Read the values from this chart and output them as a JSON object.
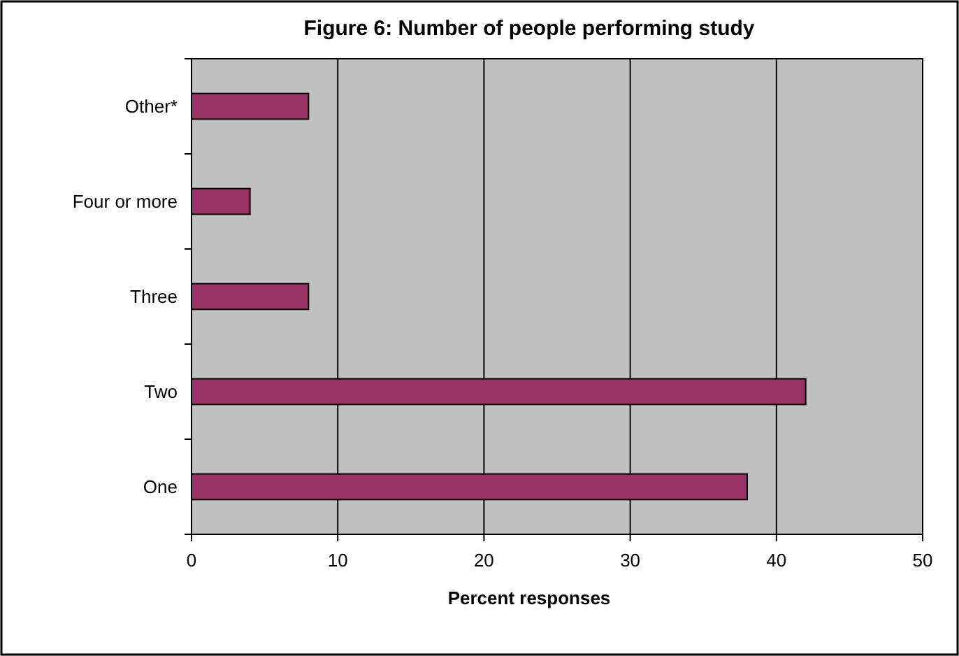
{
  "chart_data": {
    "type": "bar",
    "orientation": "horizontal",
    "title": "Figure 6: Number of people performing study",
    "xlabel": "Percent responses",
    "categories": [
      "Other*",
      "Four or more",
      "Three",
      "Two",
      "One"
    ],
    "values": [
      8,
      4,
      8,
      42,
      38
    ],
    "color": "#993366",
    "xlim": [
      0,
      50
    ],
    "xticks": [
      0,
      10,
      20,
      30,
      40,
      50
    ],
    "grid": "x"
  }
}
